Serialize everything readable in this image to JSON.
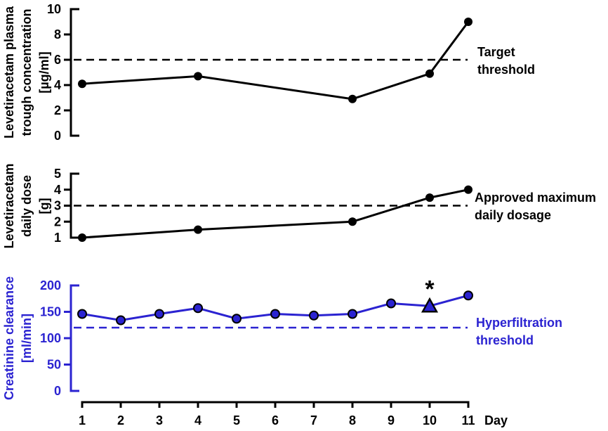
{
  "colors": {
    "black": "#000000",
    "blue": "#2b23d1",
    "background": "#ffffff"
  },
  "x_axis": {
    "label": "Day",
    "ticks": [
      1,
      2,
      3,
      4,
      5,
      6,
      7,
      8,
      9,
      10,
      11
    ],
    "lim": [
      1,
      11
    ]
  },
  "chart_data": [
    {
      "type": "line",
      "panel": "plasma-trough-concentration",
      "title_lines": [
        "Levetiracetam plasma",
        "trough concentration",
        "[µg/ml]"
      ],
      "x": [
        1,
        4,
        8,
        10,
        11
      ],
      "values": [
        4.1,
        4.7,
        2.9,
        4.9,
        9.0
      ],
      "ylim": [
        0,
        10
      ],
      "yticks": [
        0,
        2,
        4,
        6,
        8,
        10
      ],
      "threshold": {
        "value": 6,
        "style": "dashed",
        "label_lines": [
          "Target",
          "threshold"
        ]
      },
      "color": "#000000",
      "marker": "circle",
      "legend_position": "none",
      "grid": false
    },
    {
      "type": "line",
      "panel": "daily-dose",
      "title_lines": [
        "Levetiracetam",
        "daily dose",
        "[g]"
      ],
      "x": [
        1,
        4,
        8,
        10,
        11
      ],
      "values": [
        1,
        1.5,
        2,
        3.5,
        4
      ],
      "ylim": [
        1,
        5
      ],
      "yticks": [
        1,
        2,
        3,
        4,
        5
      ],
      "threshold": {
        "value": 3,
        "style": "dashed",
        "label_lines": [
          "Approved maximum",
          "daily dosage"
        ]
      },
      "color": "#000000",
      "marker": "circle",
      "legend_position": "none",
      "grid": false
    },
    {
      "type": "line",
      "panel": "creatinine-clearance",
      "title_lines": [
        "Creatinine clearance",
        "[ml/min]"
      ],
      "x": [
        1,
        2,
        3,
        4,
        5,
        6,
        7,
        8,
        9,
        10,
        11
      ],
      "values": [
        146,
        134,
        146,
        157,
        137,
        146,
        143,
        146,
        166,
        161,
        181
      ],
      "ylim": [
        0,
        200
      ],
      "yticks": [
        0,
        50,
        100,
        150,
        200
      ],
      "threshold": {
        "value": 120,
        "style": "dashed",
        "label_lines": [
          "Hyperfiltration",
          "threshold"
        ]
      },
      "color": "#2b23d1",
      "marker": "circle",
      "special_point": {
        "day": 10,
        "marker": "triangle",
        "annotation": "*",
        "annotation_color": "#000000"
      },
      "legend_position": "none",
      "grid": false
    }
  ]
}
